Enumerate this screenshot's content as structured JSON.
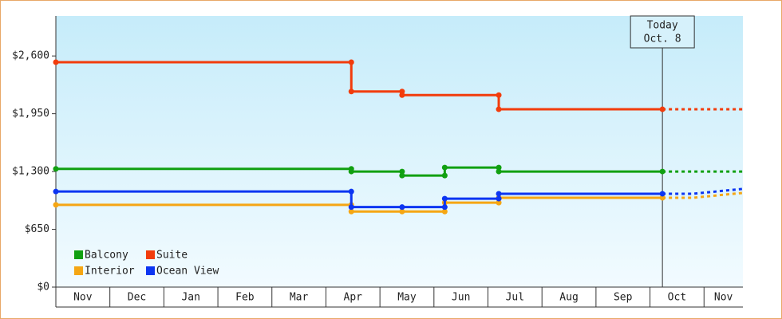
{
  "chart_data": {
    "type": "line",
    "xlim": [
      0,
      12.72
    ],
    "xticks": [
      {
        "value": 0,
        "label": "Nov"
      },
      {
        "value": 1,
        "label": "Dec"
      },
      {
        "value": 2,
        "label": "Jan"
      },
      {
        "value": 3,
        "label": "Feb"
      },
      {
        "value": 4,
        "label": "Mar"
      },
      {
        "value": 5,
        "label": "Apr"
      },
      {
        "value": 6,
        "label": "May"
      },
      {
        "value": 7,
        "label": "Jun"
      },
      {
        "value": 8,
        "label": "Jul"
      },
      {
        "value": 9,
        "label": "Aug"
      },
      {
        "value": 10,
        "label": "Sep"
      },
      {
        "value": 11,
        "label": "Oct"
      },
      {
        "value": 12,
        "label": "Nov"
      }
    ],
    "ylim": [
      0,
      3050
    ],
    "yticks": [
      {
        "value": 0,
        "label": "$0"
      },
      {
        "value": 650,
        "label": "$650"
      },
      {
        "value": 1300,
        "label": "$1,300"
      },
      {
        "value": 1950,
        "label": "$1,950"
      },
      {
        "value": 2600,
        "label": "$2,600"
      }
    ],
    "annotation": {
      "x": 11.23,
      "text": [
        "Today",
        "Oct. 8"
      ]
    },
    "series": [
      {
        "name": "Balcony",
        "color": "#11a011",
        "x": [
          0,
          5.47,
          5.47,
          6.41,
          6.41,
          7.2,
          7.2,
          8.2,
          8.2,
          11.23
        ],
        "values": [
          1330,
          1330,
          1300,
          1300,
          1255,
          1255,
          1345,
          1345,
          1300,
          1300
        ],
        "projection": {
          "x": [
            11.23,
            12.72
          ],
          "values": [
            1300,
            1300
          ]
        }
      },
      {
        "name": "Suite",
        "color": "#f23c0c",
        "x": [
          0,
          5.47,
          5.47,
          6.41,
          6.41,
          8.2,
          8.2,
          11.23
        ],
        "values": [
          2530,
          2530,
          2200,
          2200,
          2160,
          2160,
          2000,
          2000
        ],
        "projection": {
          "x": [
            11.23,
            12.72
          ],
          "values": [
            2000,
            2000
          ]
        }
      },
      {
        "name": "Interior",
        "color": "#f5a614",
        "x": [
          0,
          5.47,
          5.47,
          6.41,
          7.2,
          7.2,
          8.2,
          8.2,
          11.23
        ],
        "values": [
          925,
          925,
          850,
          850,
          850,
          950,
          950,
          1005,
          1005
        ],
        "projection": {
          "x": [
            11.23,
            11.8,
            12.72
          ],
          "values": [
            1005,
            1005,
            1060
          ]
        }
      },
      {
        "name": "Ocean View",
        "color": "#0c35f2",
        "x": [
          0,
          5.47,
          5.47,
          6.41,
          7.2,
          7.2,
          8.2,
          8.2,
          11.23
        ],
        "values": [
          1075,
          1075,
          900,
          900,
          900,
          995,
          995,
          1050,
          1050
        ],
        "projection": {
          "x": [
            11.23,
            11.8,
            12.72
          ],
          "values": [
            1050,
            1050,
            1105
          ]
        }
      }
    ]
  }
}
